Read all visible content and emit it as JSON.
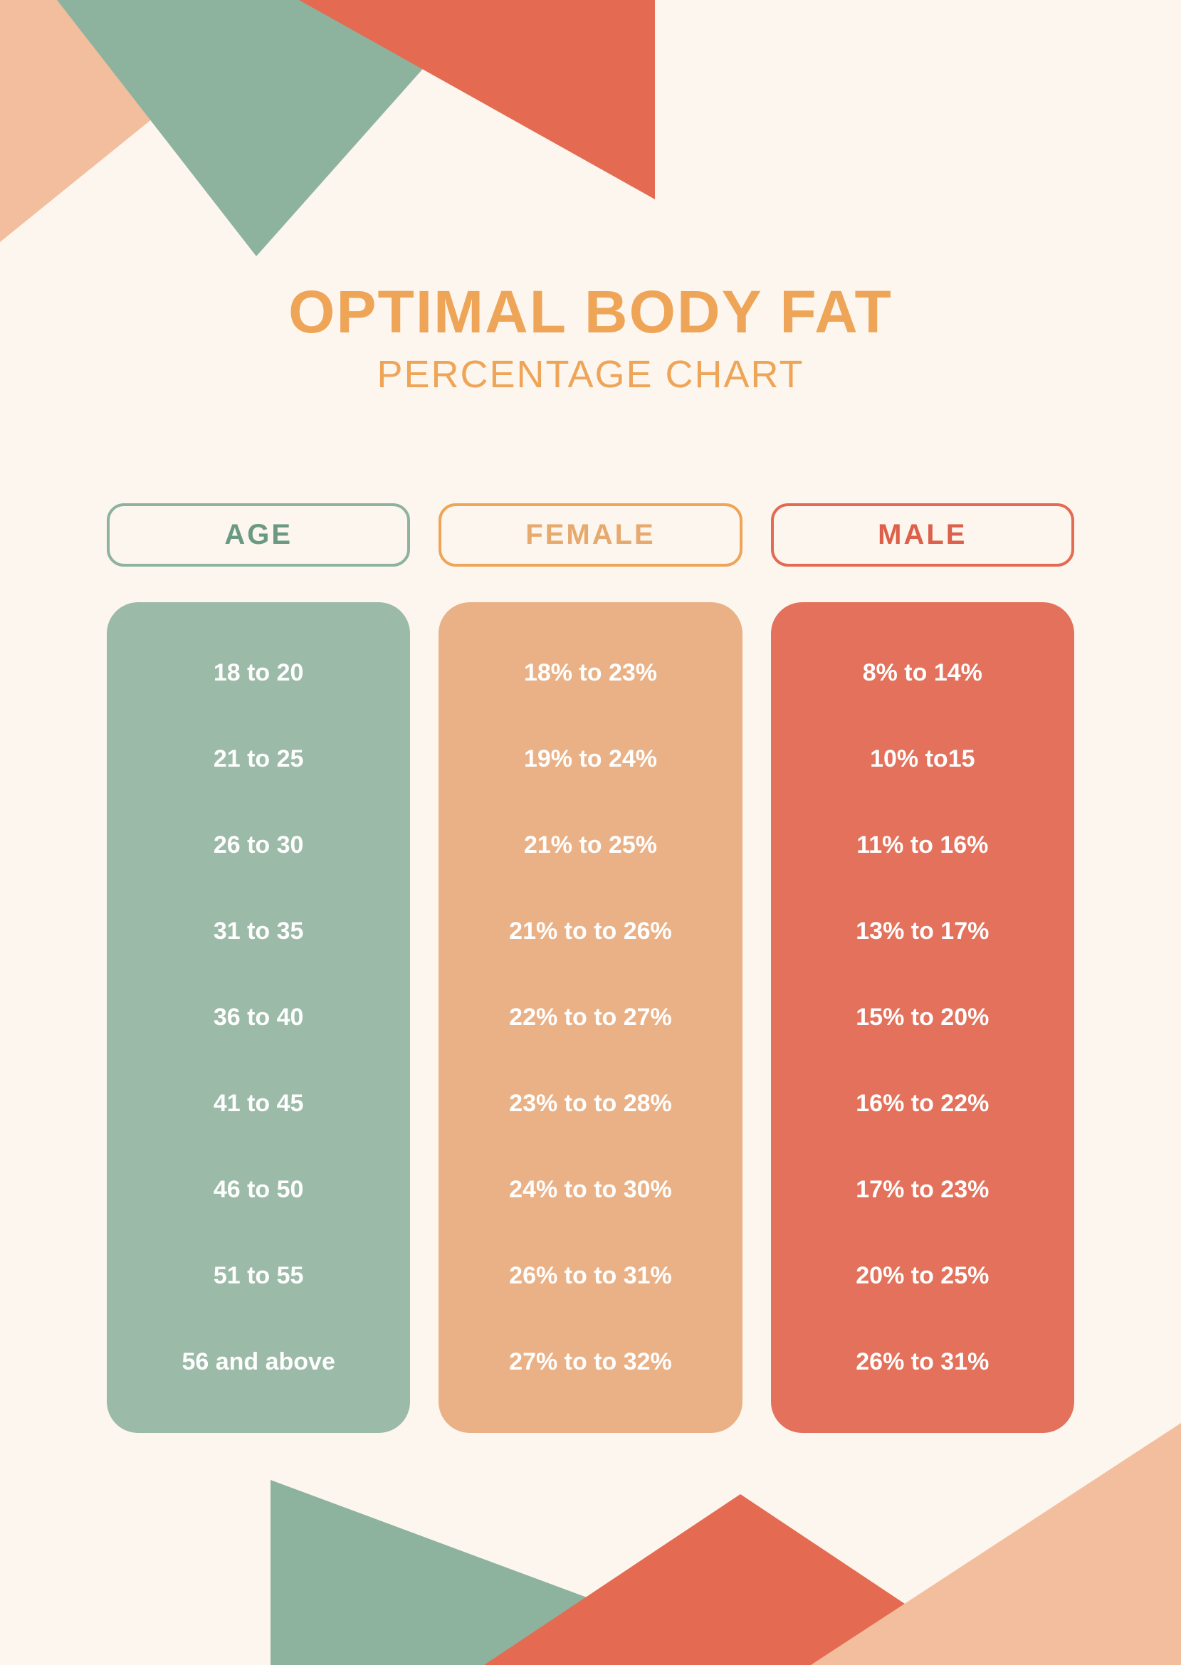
{
  "title": "OPTIMAL BODY FAT",
  "subtitle": "PERCENTAGE CHART",
  "colors": {
    "background": "#fdf6ee",
    "title_color": "#eea558",
    "age_border": "#8db39e",
    "age_text": "#6a9b82",
    "age_fill": "#9bbaa7",
    "female_border": "#eea558",
    "female_text": "#e6a96e",
    "female_fill": "#eab186",
    "male_border": "#e56a52",
    "male_text": "#dd604b",
    "male_fill": "#e3715b",
    "cell_text": "#ffffff",
    "tri_peach": "#f3be9d",
    "tri_green": "#8db39e",
    "tri_red": "#e56a52"
  },
  "typography": {
    "title_fontsize": 84,
    "title_weight": 800,
    "subtitle_fontsize": 54,
    "subtitle_weight": 400,
    "header_fontsize": 40,
    "header_weight": 800,
    "cell_fontsize": 34,
    "cell_weight": 700
  },
  "layout": {
    "column_gap": 40,
    "row_gap": 82,
    "header_border_radius": 24,
    "body_border_radius": 44,
    "header_border_width": 4
  },
  "columns": {
    "age": {
      "header": "AGE"
    },
    "female": {
      "header": "FEMALE"
    },
    "male": {
      "header": "MALE"
    }
  },
  "rows": [
    {
      "age": "18 to 20",
      "female": "18% to 23%",
      "male": "8% to 14%"
    },
    {
      "age": "21 to 25",
      "female": "19% to 24%",
      "male": "10% to15"
    },
    {
      "age": "26 to 30",
      "female": "21% to 25%",
      "male": "11% to 16%"
    },
    {
      "age": "31 to 35",
      "female": "21% to to 26%",
      "male": "13% to 17%"
    },
    {
      "age": "36 to 40",
      "female": "22% to to 27%",
      "male": "15% to 20%"
    },
    {
      "age": "41 to 45",
      "female": "23% to to 28%",
      "male": "16% to 22%"
    },
    {
      "age": "46 to 50",
      "female": "24% to to 30%",
      "male": "17% to 23%"
    },
    {
      "age": "51 to 55",
      "female": "26% to to 31%",
      "male": "20% to 25%"
    },
    {
      "age": "56 and above",
      "female": "27% to to 32%",
      "male": "26% to 31%"
    }
  ]
}
